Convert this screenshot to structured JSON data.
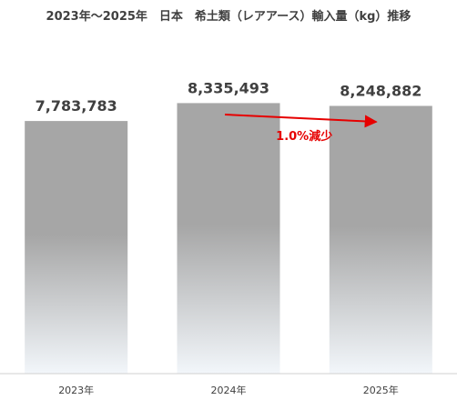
{
  "chart_data": {
    "type": "bar",
    "title": "2023年～2025年　日本　希土類（レアアース）輸入量（kg）推移",
    "categories": [
      "2023年",
      "2024年",
      "2025年"
    ],
    "values": [
      7783783,
      8335493,
      8248882
    ],
    "value_labels": [
      "7,783,783",
      "8,335,493",
      "8,248,882"
    ],
    "ylim": [
      0,
      10000000
    ],
    "grid": false,
    "legend": "none",
    "annotation": {
      "text": "1.0%減少",
      "from_category": "2024年",
      "to_category": "2025年",
      "color": "#e60000"
    },
    "colors": {
      "bar_top": "#a6a6a6",
      "bar_bottom": "#f2f6fa",
      "axis": "#d0d0d0",
      "text": "#404040"
    }
  }
}
